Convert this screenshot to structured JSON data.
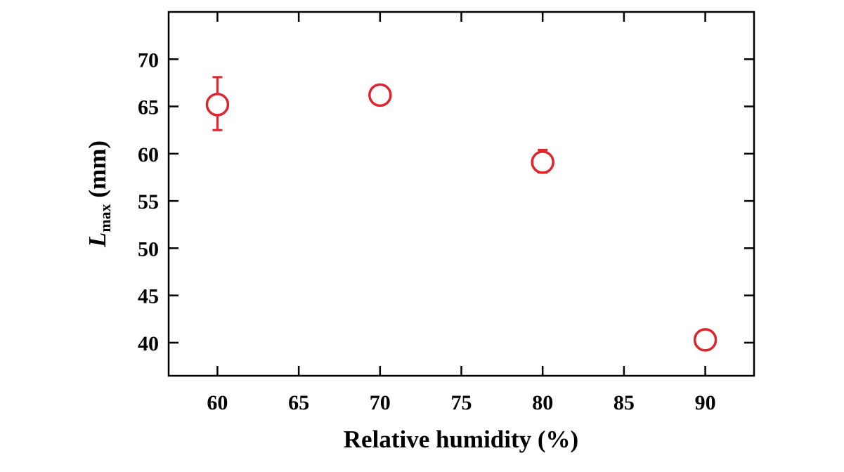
{
  "chart_data": {
    "type": "scatter",
    "title": "",
    "xlabel": "Relative humidity (%)",
    "ylabel": {
      "symbol": "L",
      "subscript": "max",
      "unit": " (mm)"
    },
    "xlim": [
      57,
      93
    ],
    "ylim": [
      36.5,
      75
    ],
    "xticks": [
      60,
      65,
      70,
      75,
      80,
      85,
      90
    ],
    "yticks": [
      40,
      45,
      50,
      55,
      60,
      65,
      70
    ],
    "grid": false,
    "legend": "none",
    "marker": "open-circle",
    "color": "#e0242c",
    "series": [
      {
        "points": [
          {
            "x": 60,
            "y": 65.2,
            "err_low": 62.5,
            "err_high": 68.1
          },
          {
            "x": 70,
            "y": 66.2,
            "err_low": 66.2,
            "err_high": 66.2
          },
          {
            "x": 80,
            "y": 59.1,
            "err_low": 58.0,
            "err_high": 60.4
          },
          {
            "x": 90,
            "y": 40.3,
            "err_low": 39.7,
            "err_high": 41.0
          }
        ]
      }
    ]
  }
}
